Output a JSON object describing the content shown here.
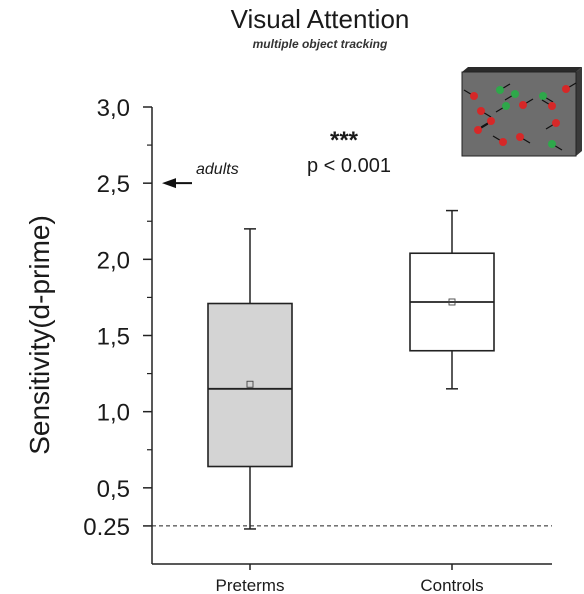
{
  "chart_data": {
    "type": "box",
    "title": "Visual Attention",
    "subtitle": "multiple object tracking",
    "ylabel": "Sensitivity(d-prime)",
    "xlabel": "",
    "ylim": [
      0.0,
      3.0
    ],
    "yticks": [
      {
        "value": 3.0,
        "label": "3,0"
      },
      {
        "value": 2.5,
        "label": "2,5"
      },
      {
        "value": 2.0,
        "label": "2,0"
      },
      {
        "value": 1.5,
        "label": "1,5"
      },
      {
        "value": 1.0,
        "label": "1,0"
      },
      {
        "value": 0.5,
        "label": "0,5"
      },
      {
        "value": 0.25,
        "label": "0.25"
      }
    ],
    "categories": [
      "Preterms",
      "Controls"
    ],
    "boxes": [
      {
        "category": "Preterms",
        "min": 0.23,
        "q1": 0.64,
        "median": 1.15,
        "mean": 1.18,
        "q3": 1.71,
        "max": 2.2,
        "fill": "#d4d4d4"
      },
      {
        "category": "Controls",
        "min": 1.15,
        "q1": 1.4,
        "median": 1.72,
        "mean": 1.72,
        "q3": 2.04,
        "max": 2.32,
        "fill": "#ffffff"
      }
    ],
    "reference_line": {
      "value": 0.25,
      "style": "dashed"
    },
    "annotations": {
      "significance": "***",
      "p_value": "p < 0.001",
      "adults_label": "adults",
      "adults_value": 2.5
    },
    "grid": false,
    "legend": "none"
  },
  "inset": {
    "description_icon": "multiple-object-tracking-stimulus",
    "background": "#6d6d6d",
    "dot_colors": [
      "#d62828",
      "#2ea84a"
    ]
  }
}
